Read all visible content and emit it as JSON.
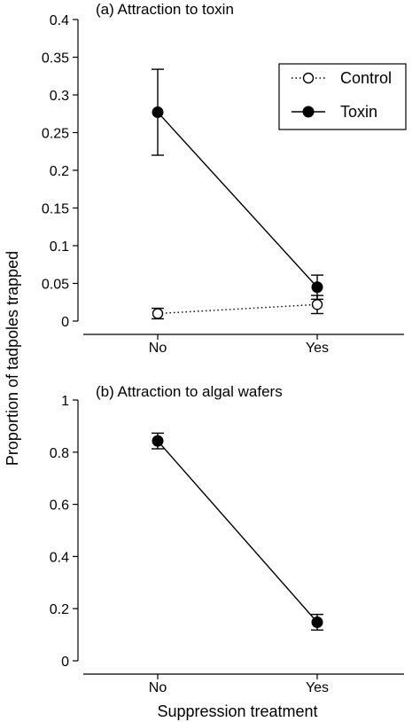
{
  "figure": {
    "ylabel": "Proportion of tadpoles trapped",
    "xlabel": "Suppression treatment"
  },
  "colors": {
    "ink": "#000000",
    "background": "#ffffff"
  },
  "chart_data": [
    {
      "type": "line",
      "title": "(a) Attraction to toxin",
      "categories": [
        "No",
        "Yes"
      ],
      "ylim": [
        0,
        0.4
      ],
      "yticks": [
        0,
        0.05,
        0.1,
        0.15,
        0.2,
        0.25,
        0.3,
        0.35,
        0.4
      ],
      "ytick_labels": [
        "0",
        "0.05",
        "0.1",
        "0.15",
        "0.2",
        "0.25",
        "0.3",
        "0.35",
        "0.4"
      ],
      "grid": false,
      "legend_position": "top-right",
      "series": [
        {
          "name": "Control",
          "marker": "open-circle",
          "line_style": "dotted",
          "values": [
            0.01,
            0.022
          ],
          "error": [
            0.007,
            0.012
          ]
        },
        {
          "name": "Toxin",
          "marker": "filled-circle",
          "line_style": "solid",
          "values": [
            0.277,
            0.045
          ],
          "error": [
            0.057,
            0.016
          ]
        }
      ]
    },
    {
      "type": "line",
      "title": "(b) Attraction to algal wafers",
      "categories": [
        "No",
        "Yes"
      ],
      "ylim": [
        0,
        1
      ],
      "yticks": [
        0,
        0.2,
        0.4,
        0.6,
        0.8,
        1
      ],
      "ytick_labels": [
        "0",
        "0.2",
        "0.4",
        "0.6",
        "0.8",
        "1"
      ],
      "grid": false,
      "series": [
        {
          "marker": "filled-circle",
          "line_style": "solid",
          "values": [
            0.843,
            0.148
          ],
          "error": [
            0.03,
            0.03
          ]
        }
      ]
    }
  ]
}
